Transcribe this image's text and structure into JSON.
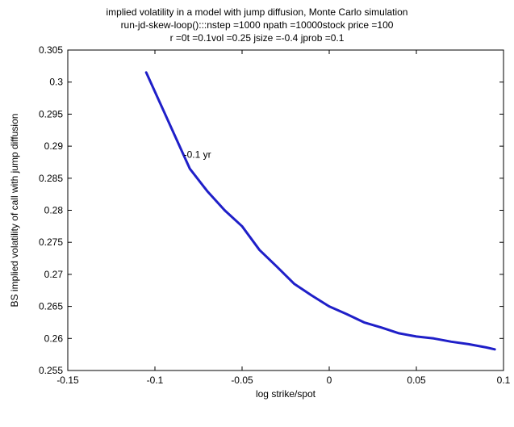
{
  "chart_data": {
    "type": "line",
    "title": [
      "implied volatility in a model with jump diffusion, Monte Carlo simulation",
      "run-jd-skew-loop():::nstep =1000 npath =10000stock price =100",
      "r =0t =0.1vol =0.25  jsize =-0.4  jprob =0.1"
    ],
    "xlabel": "log strike/spot",
    "ylabel": "BS implied volatility of call with jump diffusion",
    "xlim": [
      -0.15,
      0.1
    ],
    "ylim": [
      0.255,
      0.305
    ],
    "xticks": [
      -0.15,
      -0.1,
      -0.05,
      0,
      0.05,
      0.1
    ],
    "xtick_labels": [
      "-0.15",
      "-0.1",
      "-0.05",
      "0",
      "0.05",
      "0.1"
    ],
    "yticks": [
      0.255,
      0.26,
      0.265,
      0.27,
      0.275,
      0.28,
      0.285,
      0.29,
      0.295,
      0.3,
      0.305
    ],
    "ytick_labels": [
      "0.255",
      "0.26",
      "0.265",
      "0.27",
      "0.275",
      "0.28",
      "0.285",
      "0.29",
      "0.295",
      "0.3",
      "0.305"
    ],
    "grid": false,
    "series": [
      {
        "name": "0.1 yr",
        "color": "#1f1fc8",
        "x": [
          -0.105,
          -0.095,
          -0.085,
          -0.08,
          -0.07,
          -0.06,
          -0.05,
          -0.04,
          -0.03,
          -0.02,
          -0.01,
          0,
          0.01,
          0.02,
          0.03,
          0.04,
          0.05,
          0.06,
          0.07,
          0.08,
          0.09,
          0.095
        ],
        "y": [
          0.3015,
          0.2955,
          0.2895,
          0.2865,
          0.283,
          0.28,
          0.2775,
          0.2738,
          0.2712,
          0.2685,
          0.2667,
          0.265,
          0.2638,
          0.2625,
          0.2617,
          0.2608,
          0.2603,
          0.26,
          0.2595,
          0.2591,
          0.2586,
          0.2583
        ]
      }
    ],
    "annotations": [
      {
        "text": "-0.1 yr",
        "x": -0.0835,
        "y": 0.2887
      }
    ]
  }
}
